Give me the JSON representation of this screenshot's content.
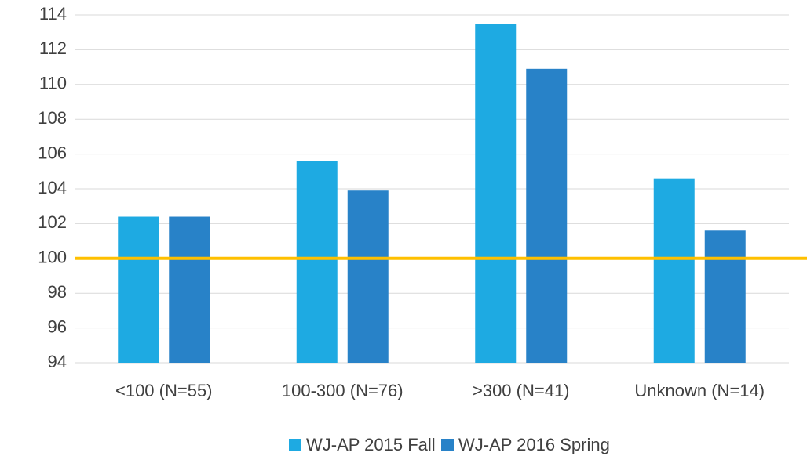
{
  "chart_data": {
    "type": "bar",
    "categories": [
      "<100 (N=55)",
      "100-300 (N=76)",
      ">300 (N=41)",
      "Unknown (N=14)"
    ],
    "series": [
      {
        "name": "WJ-AP 2015 Fall",
        "color": "#1eaae2",
        "values": [
          102.4,
          105.6,
          113.5,
          104.6
        ]
      },
      {
        "name": "WJ-AP 2016 Spring",
        "color": "#2882c8",
        "values": [
          102.4,
          103.9,
          110.9,
          101.6
        ]
      }
    ],
    "ylim": [
      94,
      114
    ],
    "yticks": [
      94,
      96,
      98,
      100,
      102,
      104,
      106,
      108,
      110,
      112,
      114
    ],
    "grid": true,
    "reference_line": {
      "value": 100,
      "color": "#ffc000"
    },
    "legend": "bottom"
  }
}
